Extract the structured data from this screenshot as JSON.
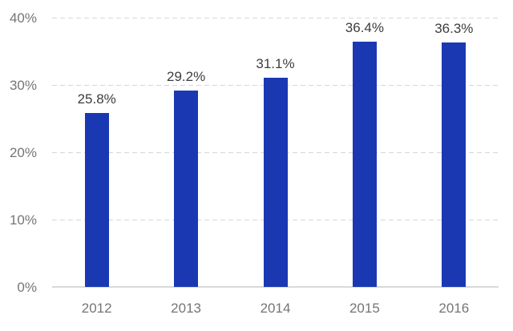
{
  "chart_data": {
    "type": "bar",
    "title": "",
    "xlabel": "",
    "ylabel": "",
    "categories": [
      "2012",
      "2013",
      "2014",
      "2015",
      "2016"
    ],
    "values": [
      25.8,
      29.2,
      31.1,
      36.4,
      36.3
    ],
    "data_labels": [
      "25.8%",
      "29.2%",
      "31.1%",
      "36.4%",
      "36.3%"
    ],
    "ylim": [
      0,
      40
    ],
    "y_ticks": [
      {
        "value": 0,
        "label": "0%"
      },
      {
        "value": 10,
        "label": "10%"
      },
      {
        "value": 20,
        "label": "20%"
      },
      {
        "value": 30,
        "label": "30%"
      },
      {
        "value": 40,
        "label": "40%"
      }
    ],
    "grid": "horizontal-dashed",
    "legend": "none",
    "colors": {
      "bar": "#1b38b3",
      "gridline": "#d6d6d6",
      "baseline": "#d9d9d9",
      "tick_label": "#757575",
      "data_label": "#3d3d3d",
      "background": "#ffffff"
    }
  }
}
